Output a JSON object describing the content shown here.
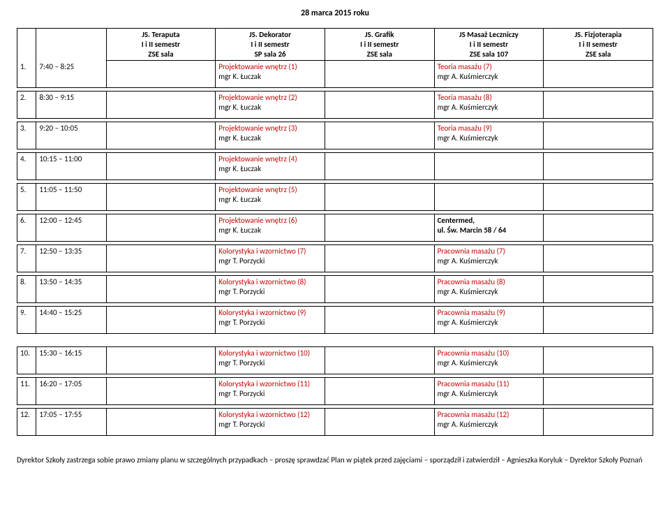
{
  "date_header": "28 marca 2015 roku",
  "columns": [
    {
      "l1": "",
      "l2": "",
      "l3": ""
    },
    {
      "l1": "",
      "l2": "",
      "l3": ""
    },
    {
      "l1": "JS. Teraputa",
      "l2": "I i II semestr",
      "l3": "ZSE  sala"
    },
    {
      "l1": "JS. Dekorator",
      "l2": "I i II semestr",
      "l3": "SP  sala 26"
    },
    {
      "l1": "JS. Grafik",
      "l2": "I i II semestr",
      "l3": "ZSE  sala"
    },
    {
      "l1": "JS Masaż Leczniczy",
      "l2": "I i II semestr",
      "l3": "ZSE  sala 107"
    },
    {
      "l1": "JS. Fizjoterapia",
      "l2": "I i II semestr",
      "l3": "ZSE  sala"
    }
  ],
  "rows": [
    {
      "n": "1.",
      "t": "7:40 – 8:25",
      "c3": "",
      "c4a": "Projektowanie wnętrz (1)",
      "c4b": "mgr K. Łuczak",
      "c5": "",
      "c6a": "Teoria masażu (7)",
      "c6b": "mgr A. Kuśmierczyk",
      "c7": ""
    },
    {
      "n": "2.",
      "t": "8:30 – 9:15",
      "c3": "",
      "c4a": "Projektowanie wnętrz (2)",
      "c4b": "mgr K. Łuczak",
      "c5": "",
      "c6a": "Teoria masażu (8)",
      "c6b": "mgr A. Kuśmierczyk",
      "c7": ""
    },
    {
      "n": "3.",
      "t": "9:20 – 10:05",
      "c3": "",
      "c4a": "Projektowanie wnętrz (3)",
      "c4b": "mgr K. Łuczak",
      "c5": "",
      "c6a": "Teoria masażu (9)",
      "c6b": "mgr A. Kuśmierczyk",
      "c7": ""
    },
    {
      "n": "4.",
      "t": "10:15 – 11:00",
      "c3": "",
      "c4a": "Projektowanie wnętrz (4)",
      "c4b": "mgr K. Łuczak",
      "c5": "",
      "c6a": "",
      "c6b": "",
      "c7": ""
    },
    {
      "n": "5.",
      "t": "11:05 – 11:50",
      "c3": "",
      "c4a": "Projektowanie wnętrz (5)",
      "c4b": "mgr K. Łuczak",
      "c5": "",
      "c6a": "",
      "c6b": "",
      "c7": ""
    },
    {
      "n": "6.",
      "t": "12:00 – 12:45",
      "c3": "",
      "c4a": "Projektowanie wnętrz (6)",
      "c4b": "mgr K. Łuczak",
      "c5": "",
      "c6a": "Centermed,",
      "c6b": "ul. Św. Marcin 58 / 64",
      "c7": "",
      "c6bold": true
    },
    {
      "n": "7.",
      "t": "12:50 – 13:35",
      "c3": "",
      "c4a": "Kolorystyka i wzornictwo (7)",
      "c4b": "mgr T. Porzycki",
      "c5": "",
      "c6a": "Pracownia masażu (7)",
      "c6b": "mgr A. Kuśmierczyk",
      "c7": ""
    },
    {
      "n": "8.",
      "t": "13:50 – 14:35",
      "c3": "",
      "c4a": "Kolorystyka i wzornictwo (8)",
      "c4b": "mgr T. Porzycki",
      "c5": "",
      "c6a": "Pracownia masażu (8)",
      "c6b": "mgr A. Kuśmierczyk",
      "c7": ""
    },
    {
      "n": "9.",
      "t": "14:40 – 15:25",
      "c3": "",
      "c4a": "Kolorystyka i wzornictwo (9)",
      "c4b": "mgr T. Porzycki",
      "c5": "",
      "c6a": "Pracownia masażu (9)",
      "c6b": "mgr A. Kuśmierczyk",
      "c7": ""
    },
    {
      "n": "10.",
      "t": "15:30 – 16:15",
      "c3": "",
      "c4a": "Kolorystyka i wzornictwo (10)",
      "c4b": "mgr T. Porzycki",
      "c5": "",
      "c6a": "Pracownia masażu (10)",
      "c6b": "mgr A. Kuśmierczyk",
      "c7": ""
    },
    {
      "n": "11.",
      "t": "16:20 – 17:05",
      "c3": "",
      "c4a": "Kolorystyka i wzornictwo (11)",
      "c4b": "mgr T. Porzycki",
      "c5": "",
      "c6a": "Pracownia masażu (11)",
      "c6b": "mgr A. Kuśmierczyk",
      "c7": ""
    },
    {
      "n": "12.",
      "t": "17:05 – 17:55",
      "c3": "",
      "c4a": "Kolorystyka i wzornictwo (12)",
      "c4b": "mgr T. Porzycki",
      "c5": "",
      "c6a": "Pracownia masażu (12)",
      "c6b": "mgr A. Kuśmierczyk",
      "c7": ""
    }
  ],
  "gaps_after": [
    1,
    2,
    3,
    4,
    5,
    6,
    7,
    8,
    9,
    10,
    11
  ],
  "big_gap_after": 9,
  "footer": "Dyrektor Szkoły zastrzega sobie prawo zmiany planu w szczególnych przypadkach – proszę sprawdzać Plan w piątek przed zajęciami – sporządził i zatwierdził – Agnieszka  Koryluk – Dyrektor Szkoły  Poznań"
}
